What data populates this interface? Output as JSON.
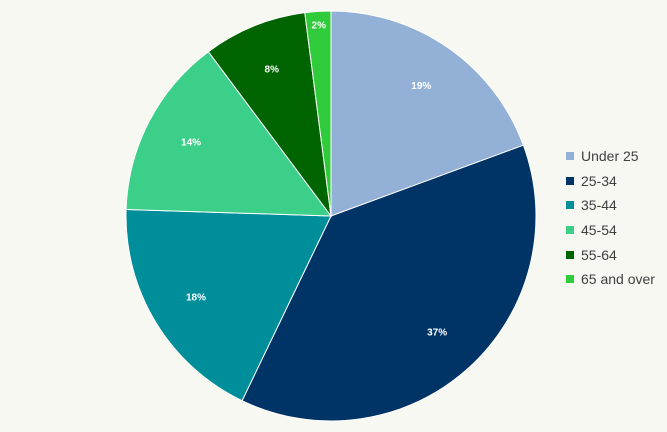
{
  "chart_data": {
    "type": "pie",
    "title": "",
    "categories": [
      "Under 25",
      "25-34",
      "35-44",
      "45-54",
      "55-64",
      "65 and over"
    ],
    "values": [
      19,
      37,
      18,
      14,
      8,
      2
    ],
    "labels": [
      "19%",
      "37%",
      "18%",
      "14%",
      "8%",
      "2%"
    ],
    "colors": [
      "#93b1d7",
      "#003366",
      "#008e9b",
      "#3ccf8a",
      "#006400",
      "#2fcb3a"
    ],
    "legend_position": "right"
  }
}
